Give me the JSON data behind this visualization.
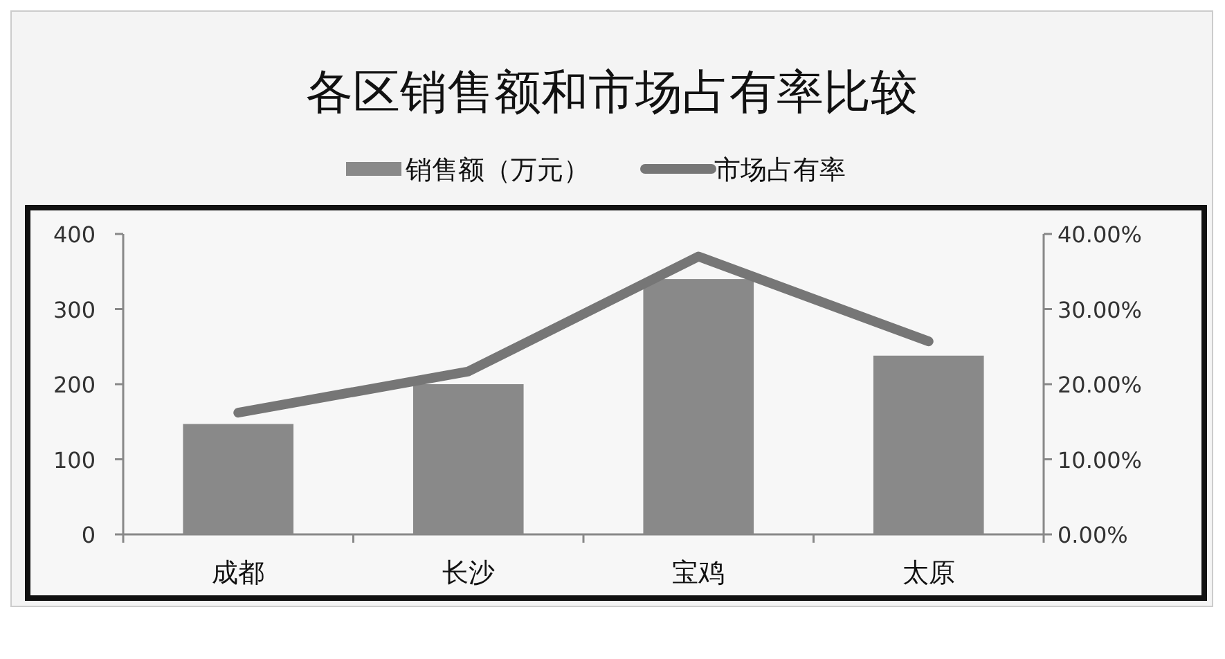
{
  "chart_data": {
    "type": "bar",
    "title": "各区销售额和市场占有率比较",
    "categories": [
      "成都",
      "长沙",
      "宝鸡",
      "太原"
    ],
    "series": [
      {
        "name": "销售额（万元）",
        "color": "#898989",
        "values": [
          147,
          200,
          340,
          238
        ]
      },
      {
        "name": "市场占有率",
        "type": "line",
        "axis": "y2",
        "color": "#767676",
        "values": [
          16.2,
          21.7,
          37,
          25.7
        ]
      }
    ],
    "ylim": [
      0,
      400
    ],
    "yticks": [
      0,
      100,
      200,
      300,
      400
    ],
    "y2lim": [
      0,
      40
    ],
    "y2ticks": [
      {
        "value": 0,
        "label": "0.00%"
      },
      {
        "value": 10,
        "label": "10.00%"
      },
      {
        "value": 20,
        "label": "20.00%"
      },
      {
        "value": 30,
        "label": "30.00%"
      },
      {
        "value": 40,
        "label": "40.00%"
      }
    ],
    "legend": "top"
  }
}
